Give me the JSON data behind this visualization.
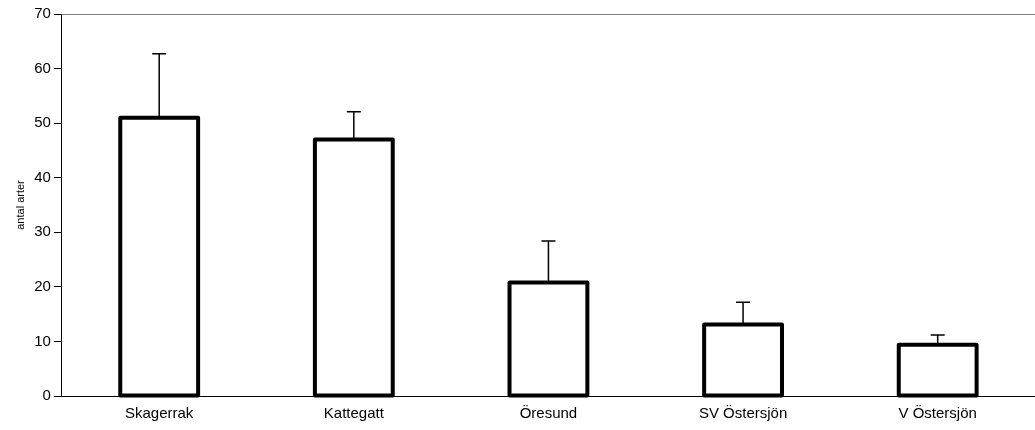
{
  "chart_data": {
    "type": "bar",
    "ylabel": "antal arter",
    "categories": [
      "Skagerrak",
      "Kattegatt",
      "Öresund",
      "SV Östersjön",
      "V Östersjön"
    ],
    "values": [
      51,
      47,
      20.8,
      13.1,
      9.4
    ],
    "errors": [
      [
        51,
        62.7
      ],
      [
        47,
        52.1
      ],
      [
        20.8,
        28.4
      ],
      [
        13.1,
        17.2
      ],
      [
        9.4,
        11.2
      ]
    ],
    "color": "#000000",
    "ylim": [
      0,
      70
    ],
    "yticks": [
      0,
      10,
      20,
      30,
      40,
      50,
      60,
      70
    ],
    "grid": false,
    "legend": false
  }
}
